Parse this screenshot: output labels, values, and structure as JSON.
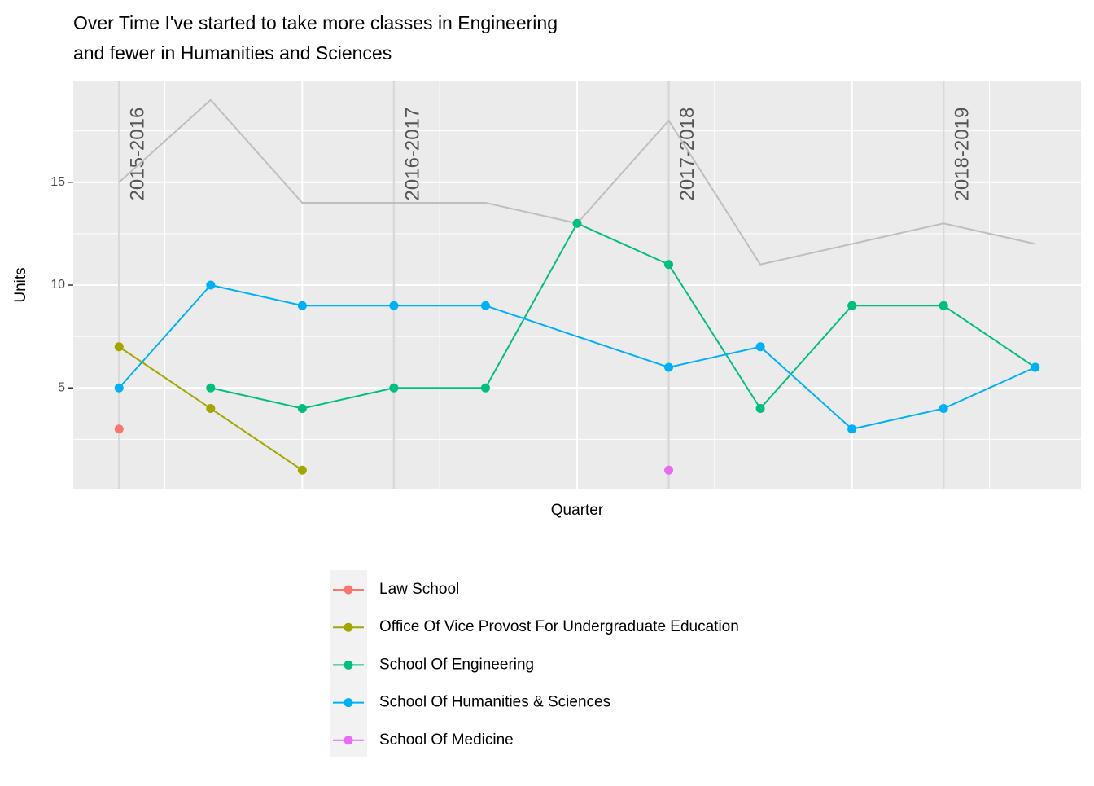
{
  "chart_data": {
    "type": "line",
    "title": [
      "Over Time I've started to take more classes in Engineering",
      "and fewer in Humanities and Sciences"
    ],
    "x_label": "Quarter",
    "y_label": "Units",
    "xlim": [
      0.5,
      11.5
    ],
    "xticks": [
      3,
      6,
      9
    ],
    "ylim": [
      0.1,
      19.9
    ],
    "yticks": [
      5,
      10,
      15
    ],
    "grid": true,
    "legend": "bottom",
    "annotations": [
      {
        "x": 1,
        "label": "2015-2016"
      },
      {
        "x": 4,
        "label": "2016-2017"
      },
      {
        "x": 7,
        "label": "2017-2018"
      },
      {
        "x": 10,
        "label": "2018-2019"
      }
    ],
    "total": {
      "color": "#bebebe",
      "x": [
        1,
        2,
        3,
        4,
        5,
        6,
        7,
        8,
        9,
        10,
        11
      ],
      "values": [
        15,
        19,
        14,
        14,
        14,
        13,
        18,
        11,
        12,
        13,
        12
      ]
    },
    "series": [
      {
        "name": "Law School",
        "color": "#F8766D",
        "x": [
          1
        ],
        "values": [
          3
        ]
      },
      {
        "name": "Office Of Vice Provost For Undergraduate Education",
        "color": "#A3A500",
        "x": [
          1,
          2,
          3
        ],
        "values": [
          7,
          4,
          1
        ]
      },
      {
        "name": "School Of Engineering",
        "color": "#00BF7D",
        "x": [
          2,
          3,
          4,
          5,
          6,
          7,
          8,
          9,
          10,
          11
        ],
        "values": [
          5,
          4,
          5,
          5,
          13,
          11,
          4,
          9,
          9,
          6
        ]
      },
      {
        "name": "School Of Humanities & Sciences",
        "color": "#00B0F6",
        "x": [
          1,
          2,
          3,
          4,
          5,
          7,
          8,
          9,
          10,
          11
        ],
        "values": [
          5,
          10,
          9,
          9,
          9,
          6,
          7,
          3,
          4,
          6
        ]
      },
      {
        "name": "School Of Medicine",
        "color": "#E76BF3",
        "x": [
          7
        ],
        "values": [
          1
        ]
      }
    ]
  }
}
